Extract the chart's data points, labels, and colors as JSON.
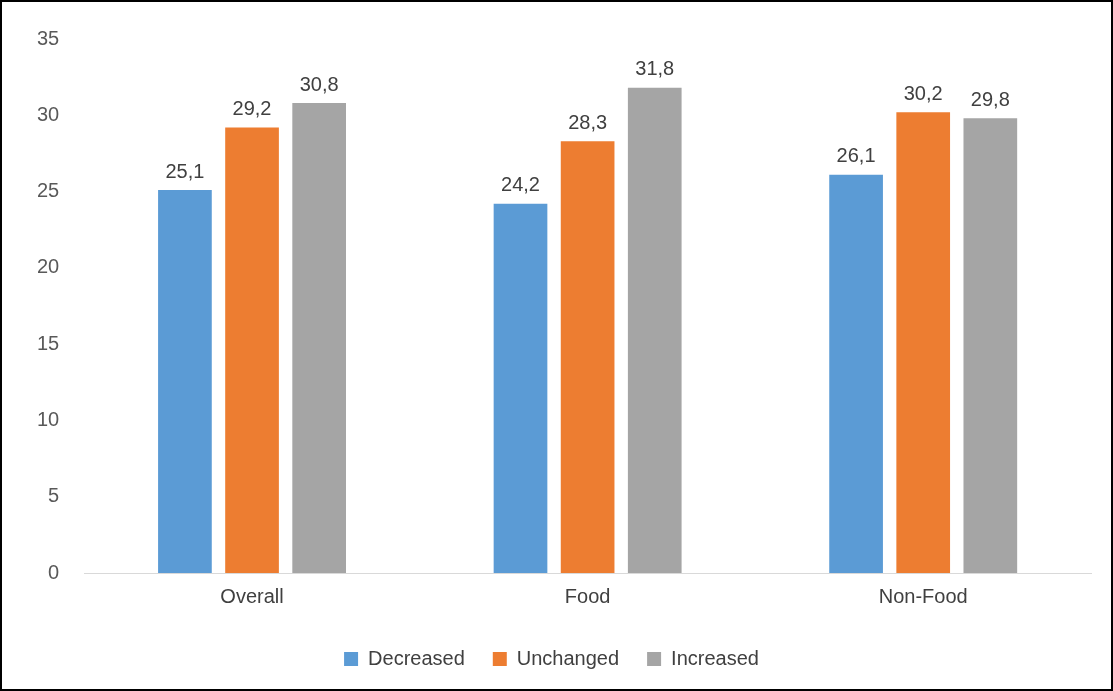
{
  "chart_data": {
    "type": "bar",
    "categories": [
      "Overall",
      "Food",
      "Non-Food"
    ],
    "series": [
      {
        "name": "Decreased",
        "color": "#5b9bd5",
        "values": [
          25.1,
          24.2,
          26.1
        ],
        "value_labels": [
          "25,1",
          "24,2",
          "26,1"
        ]
      },
      {
        "name": "Unchanged",
        "color": "#ed7d31",
        "values": [
          29.2,
          28.3,
          30.2
        ],
        "value_labels": [
          "29,2",
          "28,3",
          "30,2"
        ]
      },
      {
        "name": "Increased",
        "color": "#a5a5a5",
        "values": [
          30.8,
          31.8,
          29.8
        ],
        "value_labels": [
          "30,8",
          "31,8",
          "29,8"
        ]
      }
    ],
    "ylim": [
      0,
      35
    ],
    "yticks": [
      0,
      5,
      10,
      15,
      20,
      25,
      30,
      35
    ],
    "grid": false,
    "legend": "bottom"
  }
}
